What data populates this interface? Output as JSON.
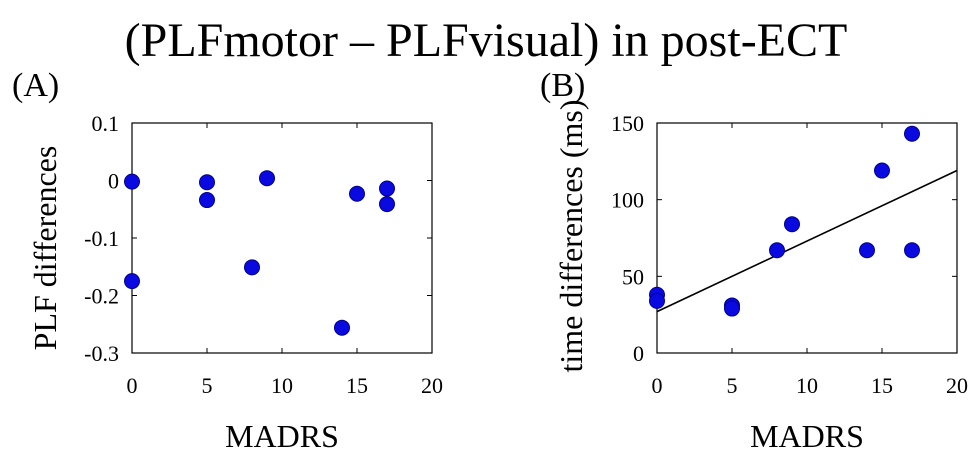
{
  "figure_title": "(PLFmotor – PLFvisual) in post-ECT",
  "colors": {
    "marker": "#0a0ae0",
    "marker_edge": "#00008b",
    "axis": "#000000",
    "fit_line": "#000000"
  },
  "chart_data": [
    {
      "panel": "(A)",
      "type": "scatter",
      "xlabel": "MADRS",
      "ylabel": "PLF differences",
      "xlim": [
        0,
        20
      ],
      "ylim": [
        -0.3,
        0.1
      ],
      "xticks": [
        0,
        5,
        10,
        15,
        20
      ],
      "yticks": [
        -0.3,
        -0.2,
        -0.1,
        0,
        0.1
      ],
      "xtick_labels": [
        "0",
        "5",
        "10",
        "15",
        "20"
      ],
      "ytick_labels": [
        "-0.3",
        "-0.2",
        "-0.1",
        "0",
        "0.1"
      ],
      "grid": false,
      "points": [
        {
          "x": 0,
          "y": -0.002
        },
        {
          "x": 0,
          "y": -0.175
        },
        {
          "x": 5,
          "y": -0.003
        },
        {
          "x": 5,
          "y": -0.034
        },
        {
          "x": 8,
          "y": -0.151
        },
        {
          "x": 9,
          "y": 0.004
        },
        {
          "x": 14,
          "y": -0.256
        },
        {
          "x": 15,
          "y": -0.023
        },
        {
          "x": 17,
          "y": -0.014
        },
        {
          "x": 17,
          "y": -0.041
        }
      ]
    },
    {
      "panel": "(B)",
      "type": "scatter",
      "xlabel": "MADRS",
      "ylabel": "time differences (ms)",
      "xlim": [
        0,
        20
      ],
      "ylim": [
        0,
        150
      ],
      "xticks": [
        0,
        5,
        10,
        15,
        20
      ],
      "yticks": [
        0,
        50,
        100,
        150
      ],
      "xtick_labels": [
        "0",
        "5",
        "10",
        "15",
        "20"
      ],
      "ytick_labels": [
        "0",
        "50",
        "100",
        "150"
      ],
      "grid": false,
      "points": [
        {
          "x": 0,
          "y": 38
        },
        {
          "x": 0,
          "y": 34
        },
        {
          "x": 5,
          "y": 31
        },
        {
          "x": 5,
          "y": 29
        },
        {
          "x": 8,
          "y": 67
        },
        {
          "x": 9,
          "y": 84
        },
        {
          "x": 14,
          "y": 67
        },
        {
          "x": 15,
          "y": 119
        },
        {
          "x": 17,
          "y": 143
        },
        {
          "x": 17,
          "y": 67
        }
      ],
      "fit_line": {
        "x": [
          0,
          20
        ],
        "y": [
          27,
          119
        ]
      }
    }
  ]
}
